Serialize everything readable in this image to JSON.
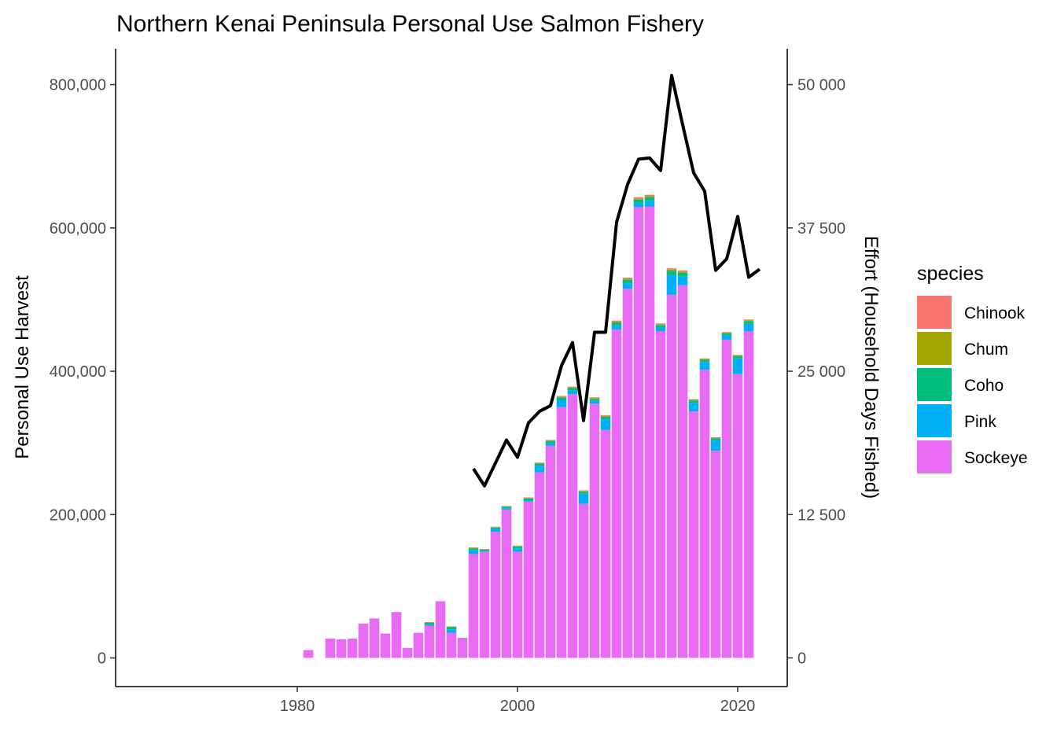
{
  "chart_data": {
    "type": "bar",
    "title": "Northern Kenai Peninsula Personal Use Salmon Fishery",
    "ylabel": "Personal Use Harvest",
    "y2label": "Effort (Household Days Fished)",
    "ylim": [
      -40000,
      850000
    ],
    "y2lim": [
      -2500,
      53125
    ],
    "xlim": [
      1963.5,
      2024.5
    ],
    "x_ticks": [
      1980,
      2000,
      2020
    ],
    "x_tick_labels": [
      "1980",
      "2000",
      "2020"
    ],
    "y_ticks": [
      0,
      200000,
      400000,
      600000,
      800000
    ],
    "y_tick_labels": [
      "0",
      "200,000",
      "400,000",
      "600,000",
      "800,000"
    ],
    "y2_ticks": [
      0,
      12500,
      25000,
      37500,
      50000
    ],
    "y2_tick_labels": [
      "0",
      "12 500",
      "25 000",
      "37 500",
      "50 000"
    ],
    "legend_title": "species",
    "legend_position": "right",
    "grid": false,
    "stacked": true,
    "series": [
      {
        "name": "Chinook",
        "color": "#F8766D",
        "x": [
          1981,
          1983,
          1984,
          1985,
          1986,
          1987,
          1988,
          1989,
          1990,
          1991,
          1992,
          1993,
          1994,
          1995,
          1996,
          1997,
          1998,
          1999,
          2000,
          2001,
          2002,
          2003,
          2004,
          2005,
          2006,
          2007,
          2008,
          2009,
          2010,
          2011,
          2012,
          2013,
          2014,
          2015,
          2016,
          2017,
          2018,
          2019,
          2020,
          2021
        ],
        "values": [
          0,
          0,
          0,
          0,
          0,
          0,
          0,
          0,
          0,
          0,
          500,
          0,
          500,
          0,
          600,
          400,
          500,
          500,
          600,
          700,
          800,
          800,
          1000,
          1000,
          900,
          1100,
          1200,
          1400,
          1500,
          1700,
          1600,
          1100,
          1800,
          1500,
          1000,
          900,
          600,
          800,
          800,
          1000
        ]
      },
      {
        "name": "Chum",
        "color": "#A3A500",
        "x": [
          1981,
          1983,
          1984,
          1985,
          1986,
          1987,
          1988,
          1989,
          1990,
          1991,
          1992,
          1993,
          1994,
          1995,
          1996,
          1997,
          1998,
          1999,
          2000,
          2001,
          2002,
          2003,
          2004,
          2005,
          2006,
          2007,
          2008,
          2009,
          2010,
          2011,
          2012,
          2013,
          2014,
          2015,
          2016,
          2017,
          2018,
          2019,
          2020,
          2021
        ],
        "values": [
          0,
          0,
          0,
          0,
          0,
          0,
          0,
          0,
          0,
          0,
          500,
          0,
          500,
          0,
          600,
          500,
          600,
          600,
          700,
          800,
          800,
          900,
          1000,
          1000,
          900,
          1000,
          1100,
          1300,
          1500,
          1600,
          1600,
          1100,
          1800,
          1700,
          1000,
          1000,
          800,
          1000,
          1100,
          1200
        ]
      },
      {
        "name": "Coho",
        "color": "#00BF7D",
        "x": [
          1981,
          1983,
          1984,
          1985,
          1986,
          1987,
          1988,
          1989,
          1990,
          1991,
          1992,
          1993,
          1994,
          1995,
          1996,
          1997,
          1998,
          1999,
          2000,
          2001,
          2002,
          2003,
          2004,
          2005,
          2006,
          2007,
          2008,
          2009,
          2010,
          2011,
          2012,
          2013,
          2014,
          2015,
          2016,
          2017,
          2018,
          2019,
          2020,
          2021
        ],
        "values": [
          0,
          0,
          0,
          0,
          0,
          0,
          0,
          0,
          0,
          0,
          2000,
          0,
          3000,
          0,
          3000,
          1500,
          2000,
          2000,
          2500,
          2500,
          3000,
          3000,
          3500,
          3500,
          3000,
          3000,
          3500,
          4000,
          4500,
          4500,
          5000,
          3500,
          6000,
          5500,
          3000,
          3000,
          2500,
          3000,
          3000,
          4000
        ]
      },
      {
        "name": "Pink",
        "color": "#00B0F6",
        "x": [
          1981,
          1983,
          1984,
          1985,
          1986,
          1987,
          1988,
          1989,
          1990,
          1991,
          1992,
          1993,
          1994,
          1995,
          1996,
          1997,
          1998,
          1999,
          2000,
          2001,
          2002,
          2003,
          2004,
          2005,
          2006,
          2007,
          2008,
          2009,
          2010,
          2011,
          2012,
          2013,
          2014,
          2015,
          2016,
          2017,
          2018,
          2019,
          2020,
          2021
        ],
        "values": [
          0,
          0,
          0,
          0,
          0,
          0,
          0,
          0,
          0,
          0,
          2000,
          0,
          5000,
          0,
          5000,
          1500,
          4000,
          2000,
          5000,
          2000,
          9000,
          3500,
          10000,
          5000,
          14000,
          3500,
          15000,
          6000,
          8000,
          6000,
          8000,
          5000,
          27000,
          12000,
          12000,
          11000,
          15000,
          6000,
          22000,
          10000
        ]
      },
      {
        "name": "Sockeye",
        "color": "#E76BF3",
        "x": [
          1981,
          1983,
          1984,
          1985,
          1986,
          1987,
          1988,
          1989,
          1990,
          1991,
          1992,
          1993,
          1994,
          1995,
          1996,
          1997,
          1998,
          1999,
          2000,
          2001,
          2002,
          2003,
          2004,
          2005,
          2006,
          2007,
          2008,
          2009,
          2010,
          2011,
          2012,
          2013,
          2014,
          2015,
          2016,
          2017,
          2018,
          2019,
          2020,
          2021
        ],
        "values": [
          11000,
          27000,
          26000,
          27000,
          48000,
          55000,
          34000,
          64000,
          14000,
          35000,
          45000,
          79000,
          35000,
          28000,
          145000,
          148000,
          176000,
          207000,
          148000,
          218000,
          259000,
          296000,
          350000,
          368000,
          215000,
          355000,
          318000,
          458000,
          515000,
          629000,
          630000,
          456000,
          507000,
          520000,
          344000,
          402000,
          289000,
          444000,
          396000,
          456000
        ]
      }
    ],
    "effort_line": {
      "color": "#000000",
      "x": [
        1996,
        1997,
        1998,
        1999,
        2000,
        2001,
        2002,
        2003,
        2004,
        2005,
        2006,
        2007,
        2008,
        2009,
        2010,
        2011,
        2012,
        2013,
        2014,
        2015,
        2016,
        2017,
        2018,
        2019,
        2020,
        2021,
        2022
      ],
      "values": [
        16500,
        15000,
        17000,
        19000,
        17500,
        20500,
        21500,
        22000,
        25500,
        27500,
        20700,
        28400,
        28400,
        38000,
        41300,
        43500,
        43600,
        42500,
        50800,
        46500,
        42300,
        40700,
        33800,
        34800,
        38500,
        33200,
        33900
      ]
    }
  }
}
